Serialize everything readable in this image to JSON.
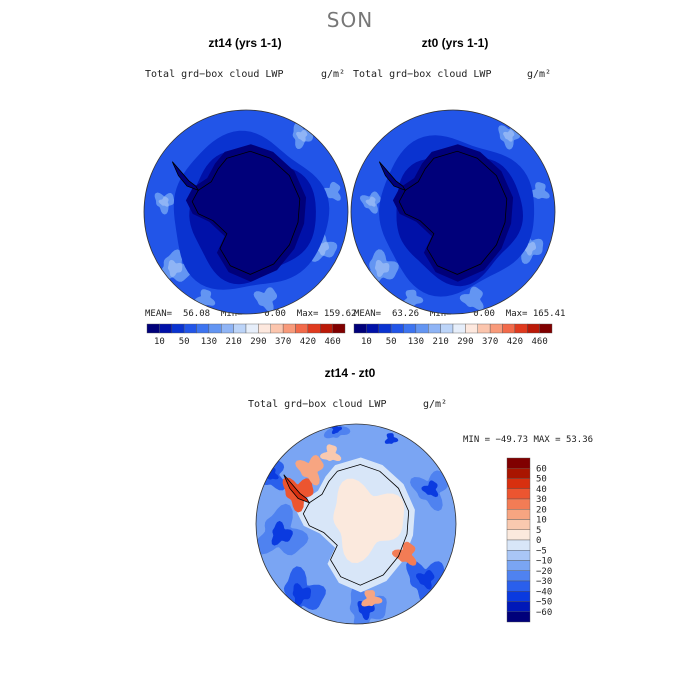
{
  "season": "SON",
  "colors": {
    "abs_palette": [
      "#00007a",
      "#0011a8",
      "#0a33d0",
      "#2255e8",
      "#3d74f0",
      "#6395f2",
      "#8fb4f5",
      "#bcd4f8",
      "#e6eefa",
      "#fde8de",
      "#fbc5ad",
      "#f89a7a",
      "#f26a4a",
      "#e03a1e",
      "#bb1a08",
      "#800000"
    ],
    "diff_palette": [
      "#00007a",
      "#0018b8",
      "#0a3ae0",
      "#2a5fec",
      "#4f82f0",
      "#7aa5f3",
      "#a9c6f6",
      "#d8e6f8",
      "#fbe9dd",
      "#f9c9af",
      "#f7a581",
      "#f37c55",
      "#ec5530",
      "#d8300f",
      "#a91500",
      "#800000"
    ]
  },
  "chart_data": [
    {
      "type": "heatmap",
      "title": "zt14 (yrs 1-1)",
      "subtitle": "Total grd−box cloud LWP",
      "units": "g/m²",
      "projection": "south-polar stereographic",
      "stats": {
        "mean_label": "MEAN=",
        "mean": "56.08",
        "min_label": "Min=",
        "min": "0.00",
        "max_label": "Max=",
        "max": "159.62"
      },
      "colorbar_ticks": [
        "10",
        "50",
        "130",
        "210",
        "290",
        "370",
        "420",
        "460"
      ]
    },
    {
      "type": "heatmap",
      "title": "zt0 (yrs 1-1)",
      "subtitle": "Total grd−box cloud LWP",
      "units": "g/m²",
      "projection": "south-polar stereographic",
      "stats": {
        "mean_label": "MEAN=",
        "mean": "63.26",
        "min_label": "Min=",
        "min": "0.00",
        "max_label": "Max=",
        "max": "165.41"
      },
      "colorbar_ticks": [
        "10",
        "50",
        "130",
        "210",
        "290",
        "370",
        "420",
        "460"
      ]
    },
    {
      "type": "heatmap",
      "title": "zt14 - zt0",
      "subtitle": "Total grd−box cloud LWP",
      "units": "g/m²",
      "projection": "south-polar stereographic",
      "minmax": "MIN = −49.73 MAX =  53.36",
      "colorbar_ticks": [
        "60",
        "50",
        "40",
        "30",
        "20",
        "10",
        "5",
        "0",
        "−5",
        "−10",
        "−20",
        "−30",
        "−40",
        "−50",
        "−60"
      ]
    }
  ]
}
